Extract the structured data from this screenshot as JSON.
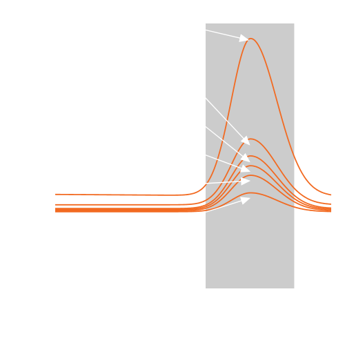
{
  "chart_data": {
    "type": "line",
    "title": "",
    "xlabel": "",
    "ylabel": "",
    "x_range": [
      0,
      100
    ],
    "y_range": [
      0,
      100
    ],
    "grid": false,
    "legend": "none",
    "highlight_band": {
      "x_start": 54.5,
      "x_end": 86.6
    },
    "series": [
      {
        "baseline_start": 35.9,
        "baseline_end": 35.2,
        "peak_x": 70.8,
        "peak": 94.6
      },
      {
        "baseline_start": 32.0,
        "baseline_end": 32.0,
        "peak_x": 70.8,
        "peak": 56.8
      },
      {
        "baseline_start": 30.6,
        "baseline_end": 30.6,
        "peak_x": 70.8,
        "peak": 50.4
      },
      {
        "baseline_start": 30.2,
        "baseline_end": 30.2,
        "peak_x": 70.8,
        "peak": 46.7
      },
      {
        "baseline_start": 29.8,
        "baseline_end": 29.8,
        "peak_x": 70.8,
        "peak": 43.1
      },
      {
        "baseline_start": 29.4,
        "baseline_end": 29.4,
        "peak_x": 70.8,
        "peak": 36.5
      }
    ],
    "annotations": [
      {
        "type": "arrow",
        "points_to_series": 0
      },
      {
        "type": "arrow",
        "points_to_series": 1
      },
      {
        "type": "arrow",
        "points_to_series": 2
      },
      {
        "type": "arrow",
        "points_to_series": 3
      },
      {
        "type": "arrow",
        "points_to_series": 4
      },
      {
        "type": "arrow",
        "points_to_series": 5
      }
    ],
    "colors": {
      "line": "#f26a21",
      "band": "#cccccc",
      "arrow": "#ffffff",
      "background": "#ffffff"
    }
  }
}
